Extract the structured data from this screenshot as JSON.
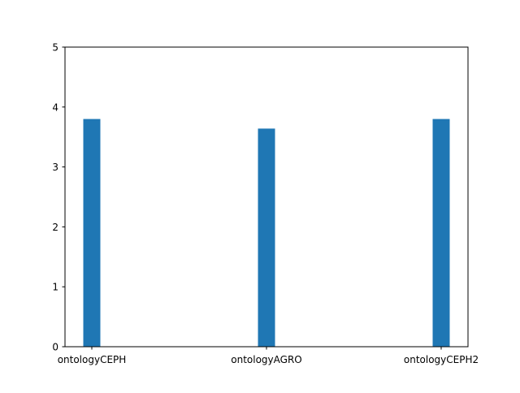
{
  "chart_data": {
    "type": "bar",
    "title": "",
    "xlabel": "",
    "ylabel": "",
    "categories": [
      "ontologyCEPH",
      "ontologyAGRO",
      "ontologyCEPH2"
    ],
    "values": [
      3.8,
      3.64,
      3.8
    ],
    "ylim": [
      0,
      5
    ],
    "yticks": [
      "0",
      "1",
      "2",
      "3",
      "4",
      "5"
    ],
    "grid": false,
    "legend": "none",
    "bar_color": "#1f77b4"
  }
}
